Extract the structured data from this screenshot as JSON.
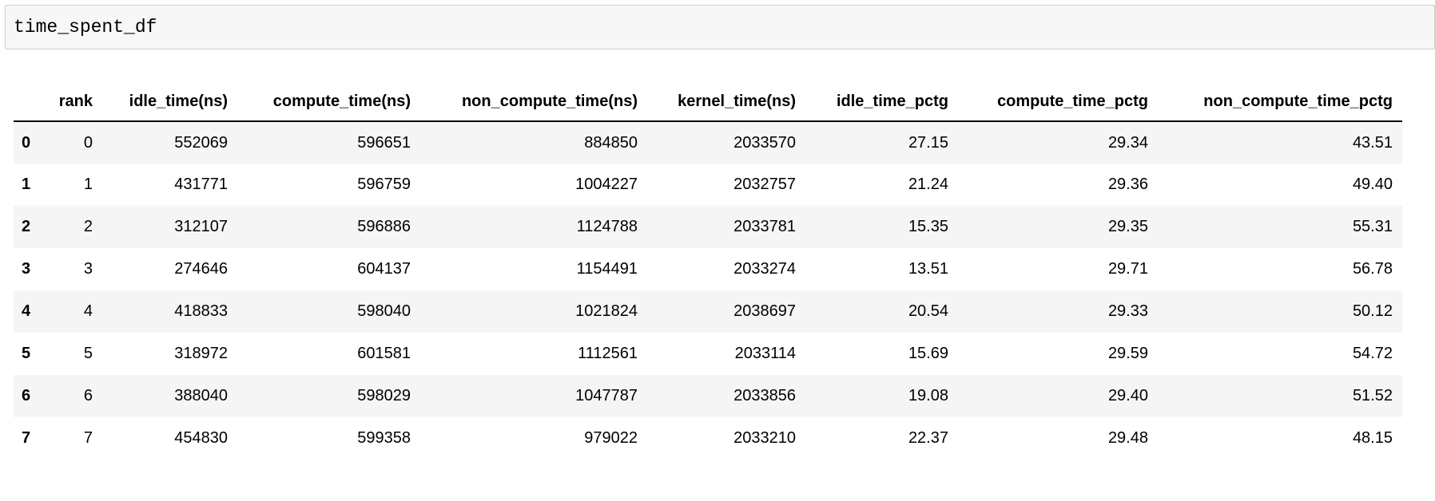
{
  "input_cell": {
    "code": "time_spent_df"
  },
  "table": {
    "columns": [
      "",
      "rank",
      "idle_time(ns)",
      "compute_time(ns)",
      "non_compute_time(ns)",
      "kernel_time(ns)",
      "idle_time_pctg",
      "compute_time_pctg",
      "non_compute_time_pctg"
    ],
    "rows": [
      [
        "0",
        "0",
        "552069",
        "596651",
        "884850",
        "2033570",
        "27.15",
        "29.34",
        "43.51"
      ],
      [
        "1",
        "1",
        "431771",
        "596759",
        "1004227",
        "2032757",
        "21.24",
        "29.36",
        "49.40"
      ],
      [
        "2",
        "2",
        "312107",
        "596886",
        "1124788",
        "2033781",
        "15.35",
        "29.35",
        "55.31"
      ],
      [
        "3",
        "3",
        "274646",
        "604137",
        "1154491",
        "2033274",
        "13.51",
        "29.71",
        "56.78"
      ],
      [
        "4",
        "4",
        "418833",
        "598040",
        "1021824",
        "2038697",
        "20.54",
        "29.33",
        "50.12"
      ],
      [
        "5",
        "5",
        "318972",
        "601581",
        "1112561",
        "2033114",
        "15.69",
        "29.59",
        "54.72"
      ],
      [
        "6",
        "6",
        "388040",
        "598029",
        "1047787",
        "2033856",
        "19.08",
        "29.40",
        "51.52"
      ],
      [
        "7",
        "7",
        "454830",
        "599358",
        "979022",
        "2033210",
        "22.37",
        "29.48",
        "48.15"
      ]
    ]
  }
}
